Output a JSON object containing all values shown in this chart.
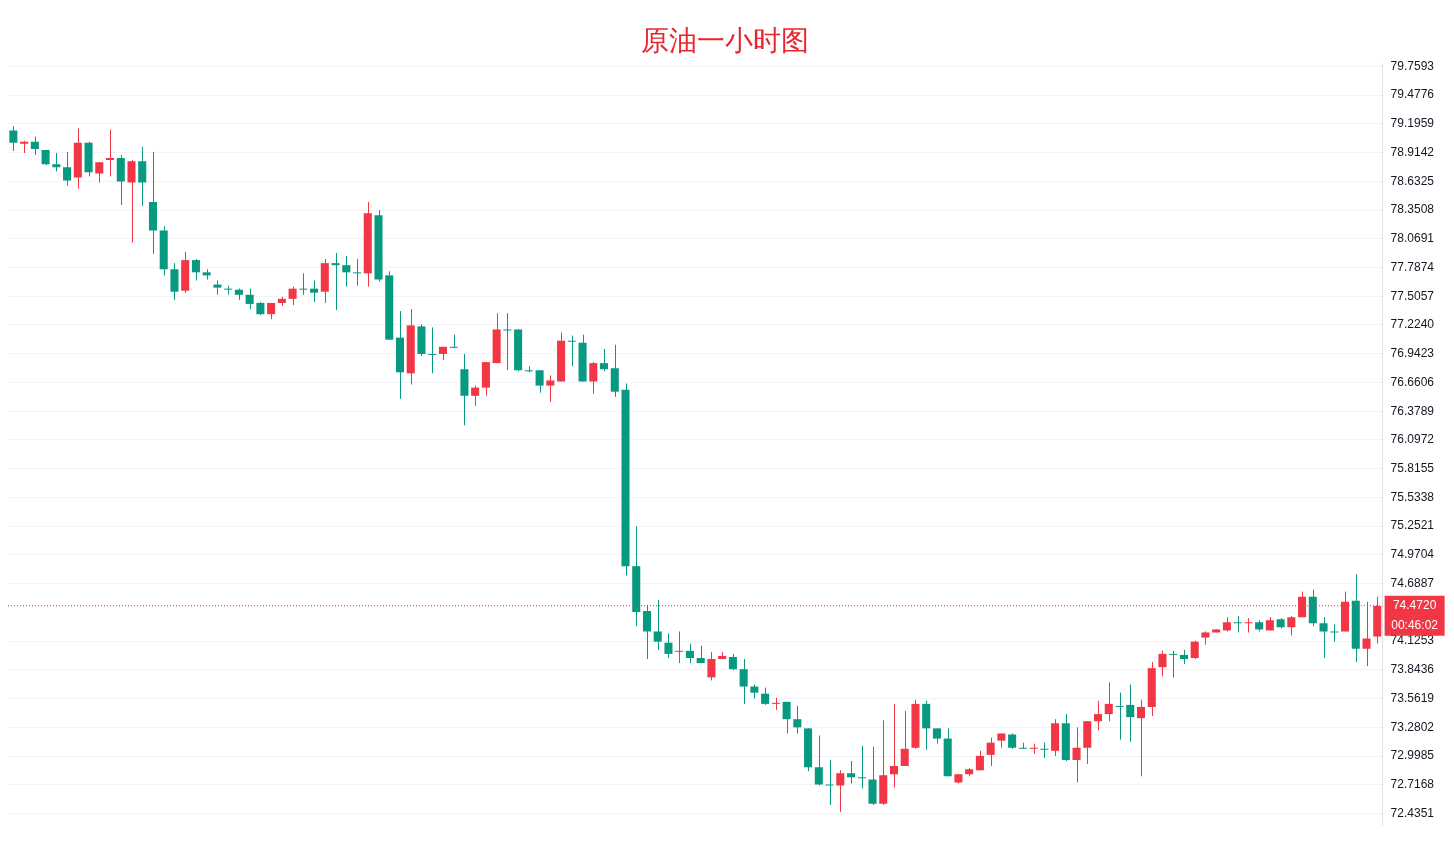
{
  "chart_data": {
    "type": "candlestick",
    "title": "原油一小时图",
    "categories": [
      null,
      null,
      null,
      null,
      null,
      null,
      null,
      null,
      null,
      null,
      null,
      null,
      null,
      null,
      null,
      null,
      null,
      null,
      null,
      null,
      null,
      null,
      null,
      null,
      null,
      null,
      null,
      null,
      null,
      null,
      null,
      null,
      null,
      null,
      null,
      null,
      null,
      null,
      null,
      null,
      null,
      null,
      null,
      null,
      null,
      null,
      null,
      null,
      null,
      null,
      null,
      null,
      null,
      null,
      null,
      null,
      null,
      null,
      null,
      null,
      null,
      null,
      null,
      null,
      null,
      null,
      null,
      null,
      null,
      null,
      null,
      null,
      null,
      null,
      null,
      null,
      null,
      null,
      null,
      null,
      null,
      null,
      null,
      null,
      null,
      null,
      null,
      null,
      null,
      null,
      null,
      null,
      null,
      null,
      null,
      null,
      null,
      null,
      null,
      null,
      null,
      null,
      null,
      null,
      null,
      null,
      null,
      null,
      null,
      null,
      null,
      null,
      null,
      null,
      null,
      null,
      null,
      null,
      null,
      null,
      null,
      null,
      null,
      null,
      null,
      null,
      null,
      null
    ],
    "ohlc": [
      [
        79.13,
        79.17,
        78.93,
        79.01
      ],
      [
        79.0,
        79.03,
        78.91,
        79.02
      ],
      [
        79.02,
        79.07,
        78.89,
        78.95
      ],
      [
        78.94,
        78.94,
        78.79,
        78.8
      ],
      [
        78.8,
        78.91,
        78.73,
        78.77
      ],
      [
        78.77,
        78.92,
        78.59,
        78.64
      ],
      [
        78.67,
        79.15,
        78.56,
        79.01
      ],
      [
        79.01,
        79.02,
        78.68,
        78.72
      ],
      [
        78.71,
        78.82,
        78.62,
        78.82
      ],
      [
        78.84,
        79.14,
        78.68,
        78.86
      ],
      [
        78.86,
        78.89,
        78.4,
        78.63
      ],
      [
        78.62,
        78.84,
        78.03,
        78.83
      ],
      [
        78.83,
        78.97,
        78.39,
        78.62
      ],
      [
        78.43,
        78.92,
        77.92,
        78.15
      ],
      [
        78.15,
        78.19,
        77.71,
        77.77
      ],
      [
        77.77,
        77.83,
        77.47,
        77.55
      ],
      [
        77.56,
        77.94,
        77.54,
        77.86
      ],
      [
        77.86,
        77.87,
        77.66,
        77.74
      ],
      [
        77.74,
        77.77,
        77.67,
        77.71
      ],
      [
        77.62,
        77.66,
        77.52,
        77.59
      ],
      [
        77.58,
        77.61,
        77.52,
        77.57
      ],
      [
        77.57,
        77.58,
        77.47,
        77.52
      ],
      [
        77.52,
        77.58,
        77.38,
        77.43
      ],
      [
        77.44,
        77.45,
        77.32,
        77.33
      ],
      [
        77.33,
        77.44,
        77.28,
        77.44
      ],
      [
        77.44,
        77.5,
        77.41,
        77.48
      ],
      [
        77.48,
        77.6,
        77.42,
        77.58
      ],
      [
        77.58,
        77.73,
        77.52,
        77.57
      ],
      [
        77.58,
        77.66,
        77.45,
        77.54
      ],
      [
        77.55,
        77.87,
        77.44,
        77.83
      ],
      [
        77.83,
        77.93,
        77.37,
        77.81
      ],
      [
        77.81,
        77.9,
        77.6,
        77.74
      ],
      [
        77.74,
        77.87,
        77.61,
        77.73
      ],
      [
        77.73,
        78.43,
        77.6,
        78.32
      ],
      [
        78.3,
        78.35,
        77.65,
        77.67
      ],
      [
        77.71,
        77.75,
        77.08,
        77.08
      ],
      [
        77.1,
        77.36,
        76.5,
        76.76
      ],
      [
        76.75,
        77.38,
        76.64,
        77.22
      ],
      [
        77.21,
        77.23,
        76.92,
        76.94
      ],
      [
        76.94,
        77.2,
        76.75,
        76.93
      ],
      [
        76.94,
        77.01,
        76.88,
        77.01
      ],
      [
        77.01,
        77.13,
        77.0,
        77.0
      ],
      [
        76.79,
        76.94,
        76.24,
        76.53
      ],
      [
        76.53,
        76.63,
        76.43,
        76.61
      ],
      [
        76.61,
        76.86,
        76.53,
        76.86
      ],
      [
        76.85,
        77.34,
        76.85,
        77.18
      ],
      [
        77.18,
        77.34,
        76.78,
        77.17
      ],
      [
        77.18,
        77.18,
        76.77,
        76.78
      ],
      [
        76.78,
        76.82,
        76.76,
        76.77
      ],
      [
        76.78,
        76.78,
        76.56,
        76.63
      ],
      [
        76.63,
        76.73,
        76.47,
        76.68
      ],
      [
        76.67,
        77.15,
        76.67,
        77.07
      ],
      [
        77.07,
        77.12,
        76.82,
        77.06
      ],
      [
        77.05,
        77.13,
        76.67,
        76.67
      ],
      [
        76.67,
        76.86,
        76.55,
        76.85
      ],
      [
        76.85,
        76.99,
        76.77,
        76.79
      ],
      [
        76.8,
        77.03,
        76.52,
        76.57
      ],
      [
        76.59,
        76.65,
        74.77,
        74.86
      ],
      [
        74.86,
        75.25,
        74.27,
        74.41
      ],
      [
        74.42,
        74.48,
        73.95,
        74.22
      ],
      [
        74.22,
        74.53,
        74.04,
        74.12
      ],
      [
        74.11,
        74.2,
        73.96,
        74.0
      ],
      [
        74.02,
        74.22,
        73.91,
        74.03
      ],
      [
        74.03,
        74.1,
        73.91,
        73.96
      ],
      [
        73.96,
        74.08,
        73.91,
        73.91
      ],
      [
        73.77,
        74.02,
        73.74,
        73.95
      ],
      [
        73.95,
        74.02,
        73.95,
        73.98
      ],
      [
        73.97,
        74.0,
        73.84,
        73.85
      ],
      [
        73.85,
        73.95,
        73.51,
        73.68
      ],
      [
        73.68,
        73.7,
        73.56,
        73.62
      ],
      [
        73.61,
        73.67,
        73.5,
        73.51
      ],
      [
        73.51,
        73.57,
        73.45,
        73.52
      ],
      [
        73.53,
        73.53,
        73.22,
        73.36
      ],
      [
        73.36,
        73.49,
        73.22,
        73.28
      ],
      [
        73.27,
        73.27,
        72.85,
        72.89
      ],
      [
        72.89,
        73.2,
        72.71,
        72.72
      ],
      [
        72.72,
        72.96,
        72.52,
        72.71
      ],
      [
        72.71,
        72.86,
        72.45,
        72.83
      ],
      [
        72.83,
        72.95,
        72.73,
        72.79
      ],
      [
        72.79,
        73.1,
        72.68,
        72.78
      ],
      [
        72.77,
        73.09,
        72.52,
        72.53
      ],
      [
        72.53,
        73.35,
        72.52,
        72.81
      ],
      [
        72.82,
        73.51,
        72.69,
        72.9
      ],
      [
        72.9,
        73.44,
        72.9,
        73.07
      ],
      [
        73.08,
        73.55,
        73.07,
        73.51
      ],
      [
        73.51,
        73.54,
        73.06,
        73.27
      ],
      [
        73.27,
        73.27,
        73.12,
        73.17
      ],
      [
        73.17,
        73.27,
        72.8,
        72.8
      ],
      [
        72.74,
        72.82,
        72.73,
        72.82
      ],
      [
        72.82,
        72.88,
        72.8,
        72.87
      ],
      [
        72.86,
        73.05,
        72.86,
        73.0
      ],
      [
        73.01,
        73.18,
        72.9,
        73.13
      ],
      [
        73.15,
        73.22,
        73.08,
        73.22
      ],
      [
        73.21,
        73.22,
        73.07,
        73.08
      ],
      [
        73.08,
        73.13,
        73.07,
        73.07
      ],
      [
        73.07,
        73.12,
        73.02,
        73.08
      ],
      [
        73.07,
        73.13,
        72.98,
        73.06
      ],
      [
        73.05,
        73.36,
        73.0,
        73.32
      ],
      [
        73.32,
        73.41,
        72.95,
        72.96
      ],
      [
        72.96,
        73.28,
        72.74,
        73.08
      ],
      [
        73.08,
        73.34,
        72.92,
        73.34
      ],
      [
        73.34,
        73.54,
        73.25,
        73.41
      ],
      [
        73.41,
        73.72,
        73.34,
        73.51
      ],
      [
        73.49,
        73.62,
        73.16,
        73.48
      ],
      [
        73.5,
        73.7,
        73.14,
        73.38
      ],
      [
        73.37,
        73.55,
        72.8,
        73.48
      ],
      [
        73.48,
        73.92,
        73.39,
        73.86
      ],
      [
        73.87,
        74.03,
        73.78,
        74.0
      ],
      [
        74.0,
        74.03,
        73.77,
        73.99
      ],
      [
        73.99,
        74.04,
        73.9,
        73.95
      ],
      [
        73.96,
        74.13,
        73.95,
        74.12
      ],
      [
        74.16,
        74.22,
        74.09,
        74.21
      ],
      [
        74.21,
        74.24,
        74.21,
        74.24
      ],
      [
        74.23,
        74.36,
        74.22,
        74.31
      ],
      [
        74.31,
        74.37,
        74.21,
        74.3
      ],
      [
        74.3,
        74.35,
        74.21,
        74.31
      ],
      [
        74.31,
        74.33,
        74.22,
        74.24
      ],
      [
        74.23,
        74.36,
        74.23,
        74.33
      ],
      [
        74.34,
        74.35,
        74.25,
        74.26
      ],
      [
        74.26,
        74.37,
        74.18,
        74.36
      ],
      [
        74.36,
        74.61,
        74.36,
        74.56
      ],
      [
        74.56,
        74.63,
        74.27,
        74.3
      ],
      [
        74.3,
        74.36,
        73.96,
        74.22
      ],
      [
        74.22,
        74.29,
        74.12,
        74.21
      ],
      [
        74.22,
        74.61,
        74.22,
        74.51
      ],
      [
        74.52,
        74.78,
        73.92,
        74.05
      ],
      [
        74.05,
        74.51,
        73.88,
        74.15
      ],
      [
        74.17,
        74.56,
        74.1,
        74.47
      ]
    ],
    "colors": [
      "#089981",
      "#f23645",
      "#089981",
      "#089981",
      "#089981",
      "#089981",
      "#f23645",
      "#089981",
      "#f23645",
      "#f23645",
      "#089981",
      "#f23645",
      "#089981",
      "#089981",
      "#089981",
      "#089981",
      "#f23645",
      "#089981",
      "#089981",
      "#089981",
      "#089981",
      "#089981",
      "#089981",
      "#089981",
      "#f23645",
      "#f23645",
      "#f23645",
      "#089981",
      "#089981",
      "#f23645",
      "#089981",
      "#089981",
      "#089981",
      "#f23645",
      "#089981",
      "#089981",
      "#089981",
      "#f23645",
      "#089981",
      "#089981",
      "#f23645",
      "#089981",
      "#089981",
      "#f23645",
      "#f23645",
      "#f23645",
      "#089981",
      "#089981",
      "#089981",
      "#089981",
      "#f23645",
      "#f23645",
      "#089981",
      "#089981",
      "#f23645",
      "#089981",
      "#089981",
      "#089981",
      "#089981",
      "#089981",
      "#089981",
      "#089981",
      "#f23645",
      "#089981",
      "#089981",
      "#f23645",
      "#f23645",
      "#089981",
      "#089981",
      "#089981",
      "#089981",
      "#f23645",
      "#089981",
      "#089981",
      "#089981",
      "#089981",
      "#089981",
      "#f23645",
      "#089981",
      "#089981",
      "#089981",
      "#f23645",
      "#f23645",
      "#f23645",
      "#f23645",
      "#089981",
      "#089981",
      "#089981",
      "#f23645",
      "#f23645",
      "#f23645",
      "#f23645",
      "#f23645",
      "#089981",
      "#089981",
      "#f23645",
      "#089981",
      "#f23645",
      "#089981",
      "#f23645",
      "#f23645",
      "#f23645",
      "#f23645",
      "#089981",
      "#089981",
      "#f23645",
      "#f23645",
      "#f23645",
      "#089981",
      "#089981",
      "#f23645",
      "#f23645",
      "#f23645",
      "#f23645",
      "#089981",
      "#f23645",
      "#089981",
      "#f23645",
      "#089981",
      "#f23645",
      "#f23645",
      "#089981",
      "#089981",
      "#089981",
      "#f23645",
      "#089981",
      "#f23645",
      "#f23645"
    ],
    "ylim": [
      72.315,
      79.786
    ],
    "yticks": [
      72.4351,
      72.7168,
      72.9985,
      73.2802,
      73.5619,
      73.8436,
      74.1253,
      74.6887,
      74.9704,
      75.2521,
      75.5338,
      75.8155,
      76.0972,
      76.3789,
      76.6606,
      76.9423,
      {
        "value": 77.224,
        "label": "77.2240"
      },
      77.5057,
      77.7874,
      78.0691,
      78.3508,
      78.6325,
      78.9142,
      79.1959,
      79.4776,
      79.7593
    ],
    "tick_labels": "y",
    "grid": "y",
    "legend": false,
    "ref_lines": [
      {
        "axis": "y",
        "value": 74.472,
        "label": "74.4720",
        "color": "#f23645",
        "line_style": "dotted"
      }
    ],
    "annotations": [
      "00:46:02"
    ]
  }
}
